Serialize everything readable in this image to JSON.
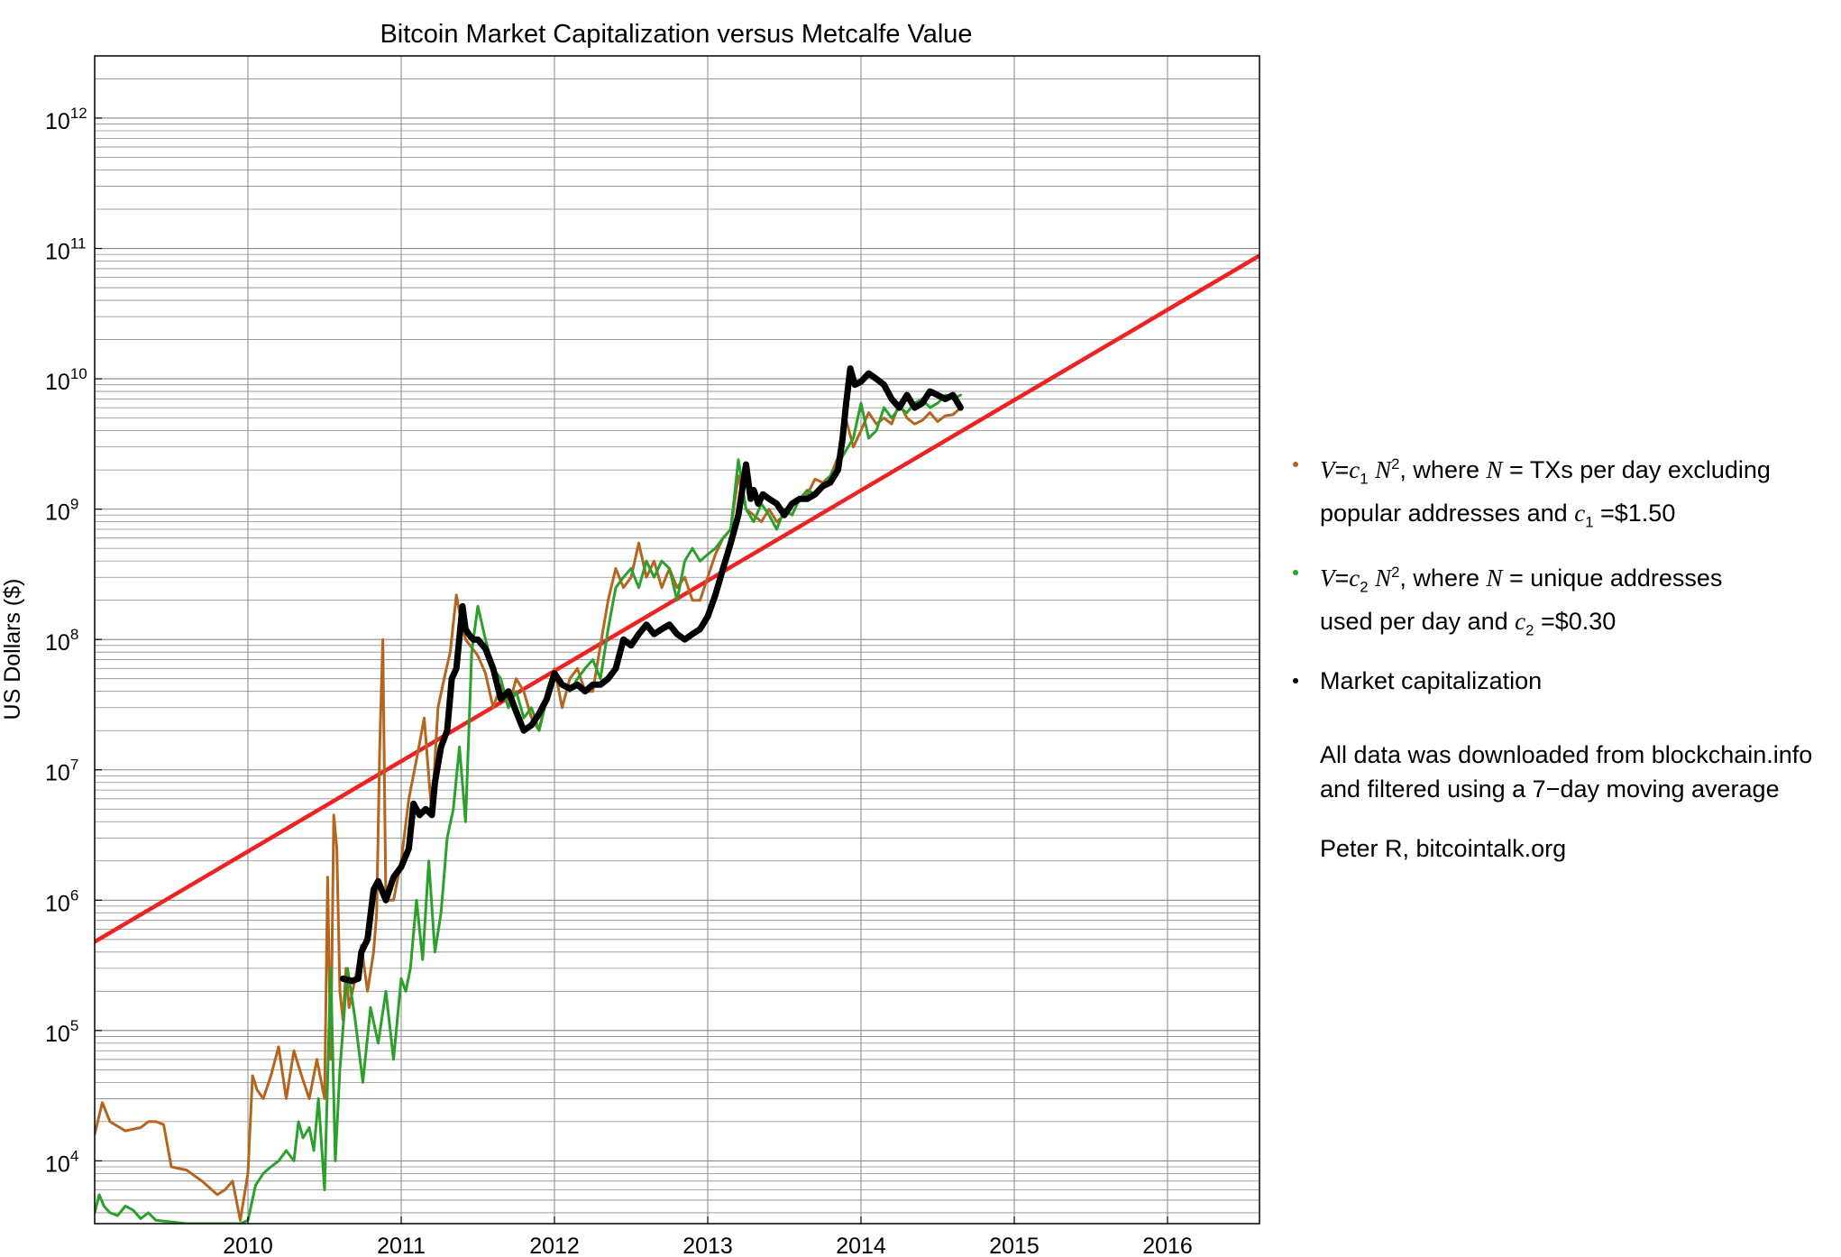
{
  "chart_data": {
    "type": "line",
    "title": "Bitcoin Market Capitalization versus Metcalfe Value",
    "ylabel": "US Dollars ($)",
    "xlabel": "",
    "xlim": [
      2009.0,
      2016.6
    ],
    "ylim": [
      3300,
      3000000000000
    ],
    "yscale": "log",
    "grid": true,
    "legend_position": "right",
    "x_ticks": [
      "2010",
      "2011",
      "2012",
      "2013",
      "2014",
      "2015",
      "2016"
    ],
    "y_ticks": [
      {
        "base": "10",
        "exp": "4"
      },
      {
        "base": "10",
        "exp": "5"
      },
      {
        "base": "10",
        "exp": "6"
      },
      {
        "base": "10",
        "exp": "7"
      },
      {
        "base": "10",
        "exp": "8"
      },
      {
        "base": "10",
        "exp": "9"
      },
      {
        "base": "10",
        "exp": "10"
      },
      {
        "base": "10",
        "exp": "11"
      },
      {
        "base": "10",
        "exp": "12"
      }
    ],
    "series": [
      {
        "key": "txs",
        "color": "#b5651d",
        "x": [
          2009.0,
          2009.05,
          2009.1,
          2009.2,
          2009.3,
          2009.35,
          2009.4,
          2009.45,
          2009.5,
          2009.6,
          2009.7,
          2009.8,
          2009.85,
          2009.9,
          2009.95,
          2010.0,
          2010.03,
          2010.06,
          2010.1,
          2010.15,
          2010.2,
          2010.25,
          2010.3,
          2010.35,
          2010.4,
          2010.45,
          2010.5,
          2010.52,
          2010.54,
          2010.56,
          2010.58,
          2010.6,
          2010.62,
          2010.64,
          2010.66,
          2010.7,
          2010.74,
          2010.78,
          2010.82,
          2010.84,
          2010.86,
          2010.88,
          2010.9,
          2010.92,
          2010.95,
          2011.0,
          2011.05,
          2011.1,
          2011.15,
          2011.2,
          2011.24,
          2011.28,
          2011.32,
          2011.36,
          2011.4,
          2011.42,
          2011.45,
          2011.5,
          2011.55,
          2011.6,
          2011.65,
          2011.7,
          2011.75,
          2011.8,
          2011.85,
          2011.9,
          2011.95,
          2012.0,
          2012.05,
          2012.1,
          2012.15,
          2012.2,
          2012.25,
          2012.3,
          2012.35,
          2012.4,
          2012.45,
          2012.5,
          2012.55,
          2012.6,
          2012.65,
          2012.7,
          2012.75,
          2012.8,
          2012.85,
          2012.9,
          2012.95,
          2013.0,
          2013.05,
          2013.1,
          2013.15,
          2013.2,
          2013.25,
          2013.3,
          2013.35,
          2013.4,
          2013.45,
          2013.5,
          2013.55,
          2013.6,
          2013.65,
          2013.7,
          2013.75,
          2013.8,
          2013.85,
          2013.9,
          2013.95,
          2014.0,
          2014.05,
          2014.1,
          2014.15,
          2014.2,
          2014.25,
          2014.3,
          2014.35,
          2014.4,
          2014.45,
          2014.5,
          2014.55,
          2014.6,
          2014.65
        ],
        "y": [
          16000,
          28000,
          20000,
          17000,
          18000,
          20000,
          20000,
          19000,
          9000,
          8500,
          7000,
          5500,
          6000,
          7000,
          3500,
          8000,
          45000,
          35000,
          30000,
          45000,
          75000,
          30000,
          70000,
          45000,
          30000,
          60000,
          30000,
          1500000,
          60000,
          4500000,
          2500000,
          200000,
          120000,
          300000,
          150000,
          250000,
          450000,
          200000,
          400000,
          800000,
          15000000,
          100000000,
          1000000,
          1000000,
          1000000,
          2000000,
          6000000,
          12000000,
          25000000,
          4500000,
          30000000,
          50000000,
          80000000,
          220000000,
          120000000,
          100000000,
          90000000,
          75000000,
          55000000,
          30000000,
          45000000,
          30000000,
          50000000,
          40000000,
          25000000,
          20000000,
          40000000,
          60000000,
          30000000,
          50000000,
          60000000,
          40000000,
          40000000,
          90000000,
          200000000,
          350000000,
          250000000,
          300000000,
          550000000,
          300000000,
          400000000,
          250000000,
          350000000,
          250000000,
          300000000,
          200000000,
          200000000,
          300000000,
          450000000,
          600000000,
          700000000,
          1800000000,
          1000000000,
          900000000,
          800000000,
          1000000000,
          800000000,
          900000000,
          1100000000,
          1200000000,
          1300000000,
          1700000000,
          1600000000,
          1800000000,
          2500000000,
          5000000000,
          3000000000,
          4000000000,
          5500000000,
          4500000000,
          5000000000,
          4500000000,
          6500000000,
          5000000000,
          4500000000,
          4800000000,
          5500000000,
          4700000000,
          5200000000,
          5300000000,
          6000000000
        ]
      },
      {
        "key": "unique",
        "color": "#2ca02c",
        "x": [
          2009.0,
          2009.03,
          2009.06,
          2009.1,
          2009.15,
          2009.2,
          2009.25,
          2009.3,
          2009.35,
          2009.4,
          2009.5,
          2009.6,
          2009.7,
          2009.8,
          2009.9,
          2009.95,
          2010.0,
          2010.05,
          2010.1,
          2010.15,
          2010.2,
          2010.25,
          2010.3,
          2010.33,
          2010.36,
          2010.4,
          2010.43,
          2010.46,
          2010.5,
          2010.54,
          2010.57,
          2010.6,
          2010.65,
          2010.7,
          2010.75,
          2010.8,
          2010.85,
          2010.9,
          2010.95,
          2011.0,
          2011.03,
          2011.06,
          2011.1,
          2011.14,
          2011.18,
          2011.22,
          2011.26,
          2011.3,
          2011.34,
          2011.38,
          2011.42,
          2011.46,
          2011.5,
          2011.55,
          2011.6,
          2011.65,
          2011.7,
          2011.75,
          2011.8,
          2011.85,
          2011.9,
          2011.95,
          2012.0,
          2012.05,
          2012.1,
          2012.15,
          2012.2,
          2012.25,
          2012.3,
          2012.35,
          2012.4,
          2012.45,
          2012.5,
          2012.55,
          2012.6,
          2012.65,
          2012.7,
          2012.75,
          2012.8,
          2012.85,
          2012.9,
          2012.95,
          2013.0,
          2013.05,
          2013.1,
          2013.15,
          2013.2,
          2013.25,
          2013.3,
          2013.35,
          2013.4,
          2013.45,
          2013.5,
          2013.55,
          2013.6,
          2013.65,
          2013.7,
          2013.75,
          2013.8,
          2013.85,
          2013.9,
          2013.95,
          2014.0,
          2014.05,
          2014.1,
          2014.15,
          2014.2,
          2014.25,
          2014.3,
          2014.35,
          2014.4,
          2014.45,
          2014.5,
          2014.55,
          2014.6,
          2014.65
        ],
        "y": [
          4000,
          5500,
          4500,
          4000,
          3800,
          4500,
          4200,
          3600,
          4000,
          3500,
          3400,
          3300,
          3300,
          3300,
          3300,
          3300,
          3500,
          6500,
          8000,
          9000,
          10000,
          12000,
          10000,
          20000,
          15000,
          18000,
          12000,
          30000,
          6000,
          300000,
          10000,
          50000,
          300000,
          120000,
          40000,
          150000,
          80000,
          200000,
          60000,
          250000,
          200000,
          300000,
          1000000,
          350000,
          2000000,
          400000,
          800000,
          3000000,
          5000000,
          15000000,
          4000000,
          80000000,
          180000000,
          100000000,
          60000000,
          50000000,
          30000000,
          40000000,
          25000000,
          30000000,
          20000000,
          35000000,
          50000000,
          45000000,
          40000000,
          50000000,
          60000000,
          70000000,
          50000000,
          120000000,
          250000000,
          300000000,
          350000000,
          250000000,
          400000000,
          300000000,
          400000000,
          350000000,
          200000000,
          400000000,
          500000000,
          400000000,
          450000000,
          500000000,
          600000000,
          700000000,
          2400000000,
          1000000000,
          800000000,
          1100000000,
          900000000,
          700000000,
          1000000000,
          900000000,
          1200000000,
          1400000000,
          1300000000,
          1500000000,
          1800000000,
          2200000000,
          2800000000,
          3500000000,
          6500000000,
          3500000000,
          4000000000,
          6000000000,
          5000000000,
          6000000000,
          5500000000,
          6500000000,
          7000000000,
          6000000000,
          6500000000,
          7500000000,
          7000000000,
          7500000000
        ]
      },
      {
        "key": "mcap",
        "color": "#000000",
        "x": [
          2010.62,
          2010.68,
          2010.72,
          2010.74,
          2010.78,
          2010.82,
          2010.85,
          2010.9,
          2010.95,
          2011.0,
          2011.05,
          2011.08,
          2011.12,
          2011.16,
          2011.2,
          2011.22,
          2011.26,
          2011.3,
          2011.33,
          2011.36,
          2011.4,
          2011.42,
          2011.44,
          2011.47,
          2011.5,
          2011.55,
          2011.6,
          2011.65,
          2011.7,
          2011.75,
          2011.8,
          2011.85,
          2011.9,
          2011.95,
          2012.0,
          2012.05,
          2012.1,
          2012.15,
          2012.2,
          2012.25,
          2012.3,
          2012.35,
          2012.4,
          2012.45,
          2012.5,
          2012.55,
          2012.6,
          2012.65,
          2012.7,
          2012.75,
          2012.8,
          2012.85,
          2012.9,
          2012.95,
          2013.0,
          2013.05,
          2013.1,
          2013.15,
          2013.2,
          2013.25,
          2013.28,
          2013.3,
          2013.33,
          2013.36,
          2013.4,
          2013.45,
          2013.5,
          2013.55,
          2013.6,
          2013.65,
          2013.7,
          2013.75,
          2013.8,
          2013.85,
          2013.88,
          2013.9,
          2013.93,
          2013.96,
          2014.0,
          2014.05,
          2014.1,
          2014.15,
          2014.2,
          2014.25,
          2014.3,
          2014.35,
          2014.4,
          2014.45,
          2014.5,
          2014.55,
          2014.6,
          2014.65
        ],
        "y": [
          250000,
          240000,
          250000,
          400000,
          500000,
          1200000,
          1400000,
          1000000,
          1500000,
          1800000,
          2500000,
          5500000,
          4500000,
          5000000,
          4500000,
          8000000,
          15000000,
          20000000,
          50000000,
          60000000,
          180000000,
          120000000,
          110000000,
          100000000,
          100000000,
          85000000,
          60000000,
          35000000,
          40000000,
          28000000,
          20000000,
          22000000,
          27000000,
          35000000,
          55000000,
          45000000,
          42000000,
          45000000,
          40000000,
          45000000,
          45000000,
          50000000,
          60000000,
          100000000,
          90000000,
          110000000,
          130000000,
          110000000,
          120000000,
          130000000,
          110000000,
          100000000,
          110000000,
          120000000,
          150000000,
          220000000,
          350000000,
          550000000,
          900000000,
          2200000000,
          1200000000,
          1400000000,
          1100000000,
          1300000000,
          1200000000,
          1100000000,
          900000000,
          1100000000,
          1200000000,
          1200000000,
          1300000000,
          1500000000,
          1600000000,
          2000000000,
          3500000000,
          6000000000,
          12000000000,
          9000000000,
          9500000000,
          11000000000,
          10000000000,
          9000000000,
          7000000000,
          6000000000,
          7500000000,
          6000000000,
          6500000000,
          8000000000,
          7500000000,
          7000000000,
          7500000000,
          6000000000
        ]
      },
      {
        "key": "trend",
        "color": "#ee2222",
        "x": [
          2009.0,
          2016.6
        ],
        "y": [
          480000,
          88000000000
        ]
      }
    ]
  },
  "legend": {
    "dot_colors": {
      "txs": "#b5651d",
      "unique": "#2ca02c",
      "mcap": "#000000"
    },
    "entry1": {
      "V": "V",
      "eq": "=",
      "c": "c",
      "c_sub": "1",
      "N": "N",
      "N_sup": "2",
      "middle": ", where ",
      "N2": "N",
      "rest": " = TXs per day excluding",
      "line2": "popular addresses and ",
      "c2": "c",
      "c2_sub": "1",
      "value": " =$1.50"
    },
    "entry2": {
      "V": "V",
      "eq": "=",
      "c": "c",
      "c_sub": "2",
      "N": "N",
      "N_sup": "2",
      "middle": ", where ",
      "N2": "N",
      "rest": " = unique addresses",
      "line2": "used per day and ",
      "c2": "c",
      "c2_sub": "2",
      "value": " =$0.30"
    },
    "entry3": {
      "label": "Market capitalization"
    }
  },
  "notes": {
    "data_line1": "All data was downloaded from blockchain.info",
    "data_line2": "and filtered using a 7−day moving average",
    "credit": "Peter R, bitcointalk.org"
  }
}
